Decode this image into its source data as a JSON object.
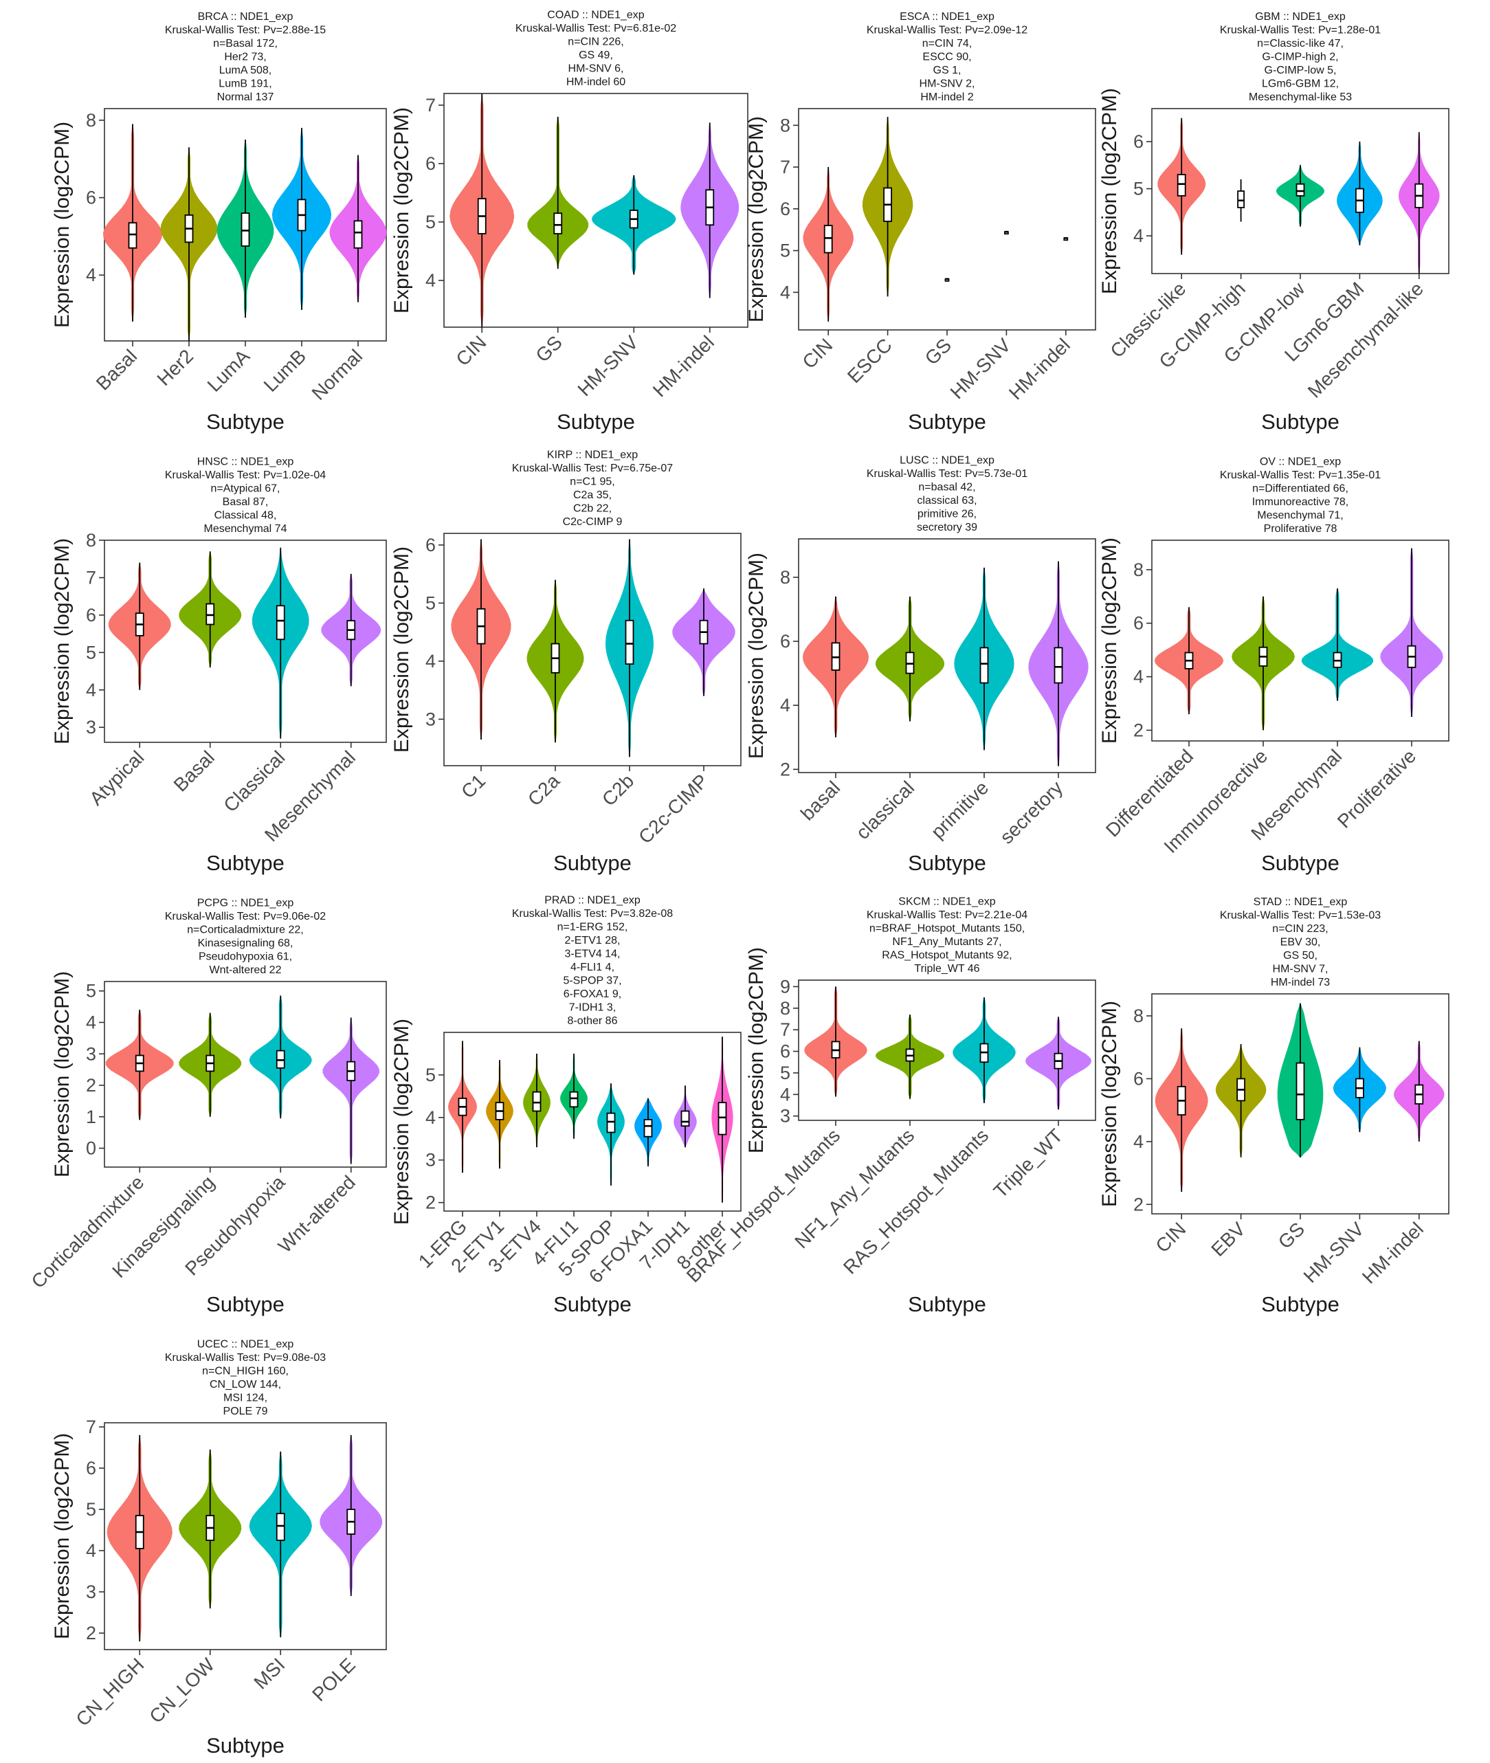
{
  "figure": {
    "xlabel": "Subtype",
    "ylabel": "Expression (log2CPM)"
  },
  "colors": {
    "c2": [
      "#F8766D",
      "#00BFC4"
    ],
    "c4": [
      "#F8766D",
      "#7CAE00",
      "#00BFC4",
      "#C77CFF"
    ],
    "c5": [
      "#F8766D",
      "#A3A500",
      "#00BF7D",
      "#00B0F6",
      "#E76BF3"
    ],
    "c8": [
      "#F8766D",
      "#CD9600",
      "#7CAE00",
      "#00BE67",
      "#00BFC4",
      "#00A9FF",
      "#C77CFF",
      "#FF61CC"
    ]
  },
  "chart_data": [
    {
      "type": "violin",
      "title": "BRCA :: NDE1_exp",
      "test": "Kruskal-Wallis Test: Pv=2.88e-15",
      "n_lines": [
        "n=Basal 172,",
        "Her2 73,",
        "LumA 508,",
        "LumB 191,",
        "Normal 137"
      ],
      "categories": [
        "Basal",
        "Her2",
        "LumA",
        "LumB",
        "Normal"
      ],
      "ylim": [
        2.3,
        8.3
      ],
      "yticks": [
        4,
        6,
        8
      ],
      "xlabel": "Subtype",
      "ylabel": "Expression (log2CPM)",
      "stats": [
        {
          "min": 2.8,
          "q1": 4.7,
          "median": 5.05,
          "q3": 5.35,
          "max": 7.9,
          "width": 0.52
        },
        {
          "min": 2.3,
          "q1": 4.85,
          "median": 5.2,
          "q3": 5.55,
          "max": 7.3,
          "width": 0.5
        },
        {
          "min": 2.9,
          "q1": 4.75,
          "median": 5.15,
          "q3": 5.6,
          "max": 7.5,
          "width": 0.5
        },
        {
          "min": 3.1,
          "q1": 5.15,
          "median": 5.55,
          "q3": 5.95,
          "max": 7.8,
          "width": 0.52
        },
        {
          "min": 3.3,
          "q1": 4.7,
          "median": 5.1,
          "q3": 5.4,
          "max": 7.1,
          "width": 0.5
        }
      ]
    },
    {
      "type": "violin",
      "title": "COAD :: NDE1_exp",
      "test": "Kruskal-Wallis Test: Pv=6.81e-02",
      "n_lines": [
        "n=CIN 226,",
        "GS 49,",
        "HM-SNV 6,",
        "HM-indel 60"
      ],
      "categories": [
        "CIN",
        "GS",
        "HM-SNV",
        "HM-indel"
      ],
      "ylim": [
        3.2,
        7.2
      ],
      "yticks": [
        4,
        5,
        6,
        7
      ],
      "xlabel": "Subtype",
      "ylabel": "Expression (log2CPM)",
      "stats": [
        {
          "min": 3.2,
          "q1": 4.8,
          "median": 5.1,
          "q3": 5.4,
          "max": 7.2,
          "width": 0.42
        },
        {
          "min": 4.2,
          "q1": 4.8,
          "median": 4.95,
          "q3": 5.15,
          "max": 6.8,
          "width": 0.4
        },
        {
          "min": 4.1,
          "q1": 4.9,
          "median": 5.05,
          "q3": 5.2,
          "max": 5.8,
          "width": 0.55
        },
        {
          "min": 3.7,
          "q1": 4.95,
          "median": 5.25,
          "q3": 5.55,
          "max": 6.7,
          "width": 0.38
        }
      ]
    },
    {
      "type": "violin",
      "title": "ESCA :: NDE1_exp",
      "test": "Kruskal-Wallis Test: Pv=2.09e-12",
      "n_lines": [
        "n=CIN 74,",
        "ESCC 90,",
        "GS 1,",
        "HM-SNV 2,",
        "HM-indel 2"
      ],
      "categories": [
        "CIN",
        "ESCC",
        "GS",
        "HM-SNV",
        "HM-indel"
      ],
      "ylim": [
        3.1,
        8.4
      ],
      "yticks": [
        4,
        5,
        6,
        7,
        8
      ],
      "xlabel": "Subtype",
      "ylabel": "Expression (log2CPM)",
      "stats": [
        {
          "min": 3.3,
          "q1": 4.95,
          "median": 5.3,
          "q3": 5.6,
          "max": 7.0,
          "width": 0.42
        },
        {
          "min": 3.9,
          "q1": 5.7,
          "median": 6.1,
          "q3": 6.5,
          "max": 8.2,
          "width": 0.42
        },
        {
          "min": 4.32,
          "q1": 4.32,
          "median": 4.32,
          "q3": 4.32,
          "max": 4.32,
          "width": 0
        },
        {
          "min": 5.45,
          "q1": 5.45,
          "median": 5.45,
          "q3": 5.45,
          "max": 5.45,
          "width": 0
        },
        {
          "min": 5.3,
          "q1": 5.3,
          "median": 5.3,
          "q3": 5.3,
          "max": 5.3,
          "width": 0
        }
      ]
    },
    {
      "type": "violin",
      "title": "GBM :: NDE1_exp",
      "test": "Kruskal-Wallis Test: Pv=1.28e-01",
      "n_lines": [
        "n=Classic-like 47,",
        "G-CIMP-high 2,",
        "G-CIMP-low 5,",
        "LGm6-GBM 12,",
        "Mesenchymal-like 53"
      ],
      "categories": [
        "Classic-like",
        "G-CIMP-high",
        "G-CIMP-low",
        "LGm6-GBM",
        "Mesenchymal-like"
      ],
      "ylim": [
        3.2,
        6.7
      ],
      "yticks": [
        4,
        5,
        6
      ],
      "xlabel": "Subtype",
      "ylabel": "Expression (log2CPM)",
      "stats": [
        {
          "min": 3.6,
          "q1": 4.85,
          "median": 5.1,
          "q3": 5.3,
          "max": 6.5,
          "width": 0.4
        },
        {
          "min": 4.3,
          "q1": 4.6,
          "median": 4.75,
          "q3": 4.95,
          "max": 5.2,
          "width": 0
        },
        {
          "min": 4.2,
          "q1": 4.85,
          "median": 4.95,
          "q3": 5.1,
          "max": 5.5,
          "width": 0.4
        },
        {
          "min": 3.8,
          "q1": 4.5,
          "median": 4.75,
          "q3": 5.0,
          "max": 6.0,
          "width": 0.38
        },
        {
          "min": 3.2,
          "q1": 4.6,
          "median": 4.85,
          "q3": 5.1,
          "max": 6.2,
          "width": 0.34
        }
      ]
    },
    {
      "type": "violin",
      "title": "HNSC :: NDE1_exp",
      "test": "Kruskal-Wallis Test: Pv=1.02e-04",
      "n_lines": [
        "n=Atypical 67,",
        "Basal 87,",
        "Classical 48,",
        "Mesenchymal 74"
      ],
      "categories": [
        "Atypical",
        "Basal",
        "Classical",
        "Mesenchymal"
      ],
      "ylim": [
        2.6,
        8.0
      ],
      "yticks": [
        3,
        4,
        5,
        6,
        7,
        8
      ],
      "xlabel": "Subtype",
      "ylabel": "Expression (log2CPM)",
      "stats": [
        {
          "min": 4.0,
          "q1": 5.45,
          "median": 5.75,
          "q3": 6.05,
          "max": 7.4,
          "width": 0.44
        },
        {
          "min": 4.6,
          "q1": 5.75,
          "median": 6.0,
          "q3": 6.3,
          "max": 7.7,
          "width": 0.44
        },
        {
          "min": 2.7,
          "q1": 5.35,
          "median": 5.85,
          "q3": 6.25,
          "max": 7.8,
          "width": 0.4
        },
        {
          "min": 4.1,
          "q1": 5.35,
          "median": 5.6,
          "q3": 5.85,
          "max": 7.1,
          "width": 0.42
        }
      ]
    },
    {
      "type": "violin",
      "title": "KIRP :: NDE1_exp",
      "test": "Kruskal-Wallis Test: Pv=6.75e-07",
      "n_lines": [
        "n=C1 95,",
        "C2a 35,",
        "C2b 22,",
        "C2c-CIMP 9"
      ],
      "categories": [
        "C1",
        "C2a",
        "C2b",
        "C2c-CIMP"
      ],
      "ylim": [
        2.2,
        6.2
      ],
      "yticks": [
        3,
        4,
        5,
        6
      ],
      "xlabel": "Subtype",
      "ylabel": "Expression (log2CPM)",
      "stats": [
        {
          "min": 2.65,
          "q1": 4.3,
          "median": 4.6,
          "q3": 4.9,
          "max": 6.1,
          "width": 0.4
        },
        {
          "min": 2.6,
          "q1": 3.8,
          "median": 4.05,
          "q3": 4.3,
          "max": 5.4,
          "width": 0.38
        },
        {
          "min": 2.35,
          "q1": 3.95,
          "median": 4.3,
          "q3": 4.7,
          "max": 6.1,
          "width": 0.32
        },
        {
          "min": 3.4,
          "q1": 4.3,
          "median": 4.5,
          "q3": 4.7,
          "max": 5.25,
          "width": 0.42
        }
      ]
    },
    {
      "type": "violin",
      "title": "LUSC :: NDE1_exp",
      "test": "Kruskal-Wallis Test: Pv=5.73e-01",
      "n_lines": [
        "n=basal 42,",
        "classical 63,",
        "primitive 26,",
        "secretory 39"
      ],
      "categories": [
        "basal",
        "classical",
        "primitive",
        "secretory"
      ],
      "ylim": [
        1.9,
        9.2
      ],
      "yticks": [
        2,
        4,
        6,
        8
      ],
      "xlabel": "Subtype",
      "ylabel": "Expression (log2CPM)",
      "stats": [
        {
          "min": 3.0,
          "q1": 5.1,
          "median": 5.5,
          "q3": 5.95,
          "max": 7.4,
          "width": 0.44
        },
        {
          "min": 3.5,
          "q1": 5.0,
          "median": 5.3,
          "q3": 5.65,
          "max": 7.4,
          "width": 0.46
        },
        {
          "min": 2.6,
          "q1": 4.7,
          "median": 5.3,
          "q3": 5.8,
          "max": 8.3,
          "width": 0.4
        },
        {
          "min": 2.1,
          "q1": 4.7,
          "median": 5.2,
          "q3": 5.8,
          "max": 8.5,
          "width": 0.4
        }
      ]
    },
    {
      "type": "violin",
      "title": "OV :: NDE1_exp",
      "test": "Kruskal-Wallis Test: Pv=1.35e-01",
      "n_lines": [
        "n=Differentiated 66,",
        "Immunoreactive 78,",
        "Mesenchymal 71,",
        "Proliferative 78"
      ],
      "categories": [
        "Differentiated",
        "Immunoreactive",
        "Mesenchymal",
        "Proliferative"
      ],
      "ylim": [
        1.6,
        9.1
      ],
      "yticks": [
        2,
        4,
        6,
        8
      ],
      "xlabel": "Subtype",
      "ylabel": "Expression (log2CPM)",
      "stats": [
        {
          "min": 2.6,
          "q1": 4.3,
          "median": 4.6,
          "q3": 4.9,
          "max": 6.6,
          "width": 0.46
        },
        {
          "min": 2.0,
          "q1": 4.4,
          "median": 4.75,
          "q3": 5.1,
          "max": 7.0,
          "width": 0.42
        },
        {
          "min": 3.1,
          "q1": 4.35,
          "median": 4.6,
          "q3": 4.9,
          "max": 7.3,
          "width": 0.48
        },
        {
          "min": 2.5,
          "q1": 4.35,
          "median": 4.75,
          "q3": 5.15,
          "max": 8.8,
          "width": 0.42
        }
      ]
    },
    {
      "type": "violin",
      "title": "PCPG :: NDE1_exp",
      "test": "Kruskal-Wallis Test: Pv=9.06e-02",
      "n_lines": [
        "n=Corticaladmixture 22,",
        "Kinasesignaling 68,",
        "Pseudohypoxia 61,",
        "Wnt-altered 22"
      ],
      "categories": [
        "Corticaladmixture",
        "Kinasesignaling",
        "Pseudohypoxia",
        "Wnt-altered"
      ],
      "ylim": [
        -0.6,
        5.3
      ],
      "yticks": [
        0,
        1,
        2,
        3,
        4,
        5
      ],
      "xlabel": "Subtype",
      "ylabel": "Expression (log2CPM)",
      "stats": [
        {
          "min": 0.9,
          "q1": 2.45,
          "median": 2.7,
          "q3": 2.95,
          "max": 4.4,
          "width": 0.48
        },
        {
          "min": 1.0,
          "q1": 2.45,
          "median": 2.7,
          "q3": 2.95,
          "max": 4.3,
          "width": 0.44
        },
        {
          "min": 0.95,
          "q1": 2.55,
          "median": 2.8,
          "q3": 3.1,
          "max": 4.85,
          "width": 0.44
        },
        {
          "min": -0.5,
          "q1": 2.15,
          "median": 2.45,
          "q3": 2.75,
          "max": 4.15,
          "width": 0.4
        }
      ]
    },
    {
      "type": "violin",
      "title": "PRAD :: NDE1_exp",
      "test": "Kruskal-Wallis Test: Pv=3.82e-08",
      "n_lines": [
        "n=1-ERG 152,",
        "2-ETV1 28,",
        "3-ETV4 14,",
        "4-FLI1 4,",
        "5-SPOP 37,",
        "6-FOXA1 9,",
        "7-IDH1 3,",
        "8-other 86"
      ],
      "categories": [
        "1-ERG",
        "2-ETV1",
        "3-ETV4",
        "4-FLI1",
        "5-SPOP",
        "6-FOXA1",
        "7-IDH1",
        "8-other"
      ],
      "ylim": [
        1.8,
        6.0
      ],
      "yticks": [
        2,
        3,
        4,
        5
      ],
      "xlabel": "Subtype",
      "ylabel": "Expression (log2CPM)",
      "stats": [
        {
          "min": 2.7,
          "q1": 4.05,
          "median": 4.25,
          "q3": 4.45,
          "max": 5.8,
          "width": 0.38
        },
        {
          "min": 2.8,
          "q1": 3.95,
          "median": 4.15,
          "q3": 4.35,
          "max": 5.35,
          "width": 0.36
        },
        {
          "min": 3.3,
          "q1": 4.15,
          "median": 4.35,
          "q3": 4.6,
          "max": 5.5,
          "width": 0.36
        },
        {
          "min": 3.5,
          "q1": 4.25,
          "median": 4.45,
          "q3": 4.6,
          "max": 5.5,
          "width": 0.36
        },
        {
          "min": 2.4,
          "q1": 3.65,
          "median": 3.9,
          "q3": 4.1,
          "max": 4.8,
          "width": 0.36
        },
        {
          "min": 2.85,
          "q1": 3.55,
          "median": 3.8,
          "q3": 3.95,
          "max": 4.45,
          "width": 0.36
        },
        {
          "min": 3.3,
          "q1": 3.8,
          "median": 3.9,
          "q3": 4.15,
          "max": 4.75,
          "width": 0.3
        },
        {
          "min": 2.0,
          "q1": 3.6,
          "median": 4.0,
          "q3": 4.35,
          "max": 5.9,
          "width": 0.28
        }
      ]
    },
    {
      "type": "violin",
      "title": "SKCM :: NDE1_exp",
      "test": "Kruskal-Wallis Test: Pv=2.21e-04",
      "n_lines": [
        "n=BRAF_Hotspot_Mutants 150,",
        "NF1_Any_Mutants 27,",
        "RAS_Hotspot_Mutants 92,",
        "Triple_WT 46"
      ],
      "categories": [
        "BRAF_Hotspot_Mutants",
        "NF1_Any_Mutants",
        "RAS_Hotspot_Mutants",
        "Triple_WT"
      ],
      "ylim": [
        2.8,
        9.3
      ],
      "yticks": [
        3,
        4,
        5,
        6,
        7,
        8,
        9
      ],
      "xlabel": "Subtype",
      "ylabel": "Expression (log2CPM)",
      "stats": [
        {
          "min": 3.9,
          "q1": 5.7,
          "median": 6.05,
          "q3": 6.45,
          "max": 9.0,
          "width": 0.42
        },
        {
          "min": 3.8,
          "q1": 5.55,
          "median": 5.8,
          "q3": 6.1,
          "max": 7.7,
          "width": 0.46
        },
        {
          "min": 3.6,
          "q1": 5.5,
          "median": 5.95,
          "q3": 6.35,
          "max": 8.5,
          "width": 0.42
        },
        {
          "min": 3.3,
          "q1": 5.2,
          "median": 5.55,
          "q3": 5.9,
          "max": 7.6,
          "width": 0.44
        }
      ]
    },
    {
      "type": "violin",
      "title": "STAD :: NDE1_exp",
      "test": "Kruskal-Wallis Test: Pv=1.53e-03",
      "n_lines": [
        "n=CIN 223,",
        "EBV 30,",
        "GS 50,",
        "HM-SNV 7,",
        "HM-indel 73"
      ],
      "categories": [
        "CIN",
        "EBV",
        "GS",
        "HM-SNV",
        "HM-indel"
      ],
      "ylim": [
        1.7,
        8.7
      ],
      "yticks": [
        2,
        4,
        6,
        8
      ],
      "xlabel": "Subtype",
      "ylabel": "Expression (log2CPM)",
      "stats": [
        {
          "min": 2.4,
          "q1": 4.85,
          "median": 5.3,
          "q3": 5.75,
          "max": 7.6,
          "width": 0.44
        },
        {
          "min": 3.5,
          "q1": 5.3,
          "median": 5.65,
          "q3": 6.0,
          "max": 7.1,
          "width": 0.42
        },
        {
          "min": 3.5,
          "q1": 4.7,
          "median": 5.5,
          "q3": 6.5,
          "max": 8.4,
          "width": 0.38
        },
        {
          "min": 4.3,
          "q1": 5.4,
          "median": 5.7,
          "q3": 6.0,
          "max": 7.0,
          "width": 0.44
        },
        {
          "min": 4.0,
          "q1": 5.2,
          "median": 5.5,
          "q3": 5.8,
          "max": 7.2,
          "width": 0.42
        }
      ]
    },
    {
      "type": "violin",
      "title": "UCEC :: NDE1_exp",
      "test": "Kruskal-Wallis Test: Pv=9.08e-03",
      "n_lines": [
        "n=CN_HIGH 160,",
        "CN_LOW 144,",
        "MSI 124,",
        "POLE 79"
      ],
      "categories": [
        "CN_HIGH",
        "CN_LOW",
        "MSI",
        "POLE"
      ],
      "ylim": [
        1.6,
        7.1
      ],
      "yticks": [
        2,
        3,
        4,
        5,
        6,
        7
      ],
      "xlabel": "Subtype",
      "ylabel": "Expression (log2CPM)",
      "stats": [
        {
          "min": 1.8,
          "q1": 4.05,
          "median": 4.45,
          "q3": 4.85,
          "max": 6.8,
          "width": 0.46
        },
        {
          "min": 2.6,
          "q1": 4.25,
          "median": 4.55,
          "q3": 4.85,
          "max": 6.45,
          "width": 0.44
        },
        {
          "min": 1.9,
          "q1": 4.25,
          "median": 4.6,
          "q3": 4.9,
          "max": 6.4,
          "width": 0.44
        },
        {
          "min": 2.9,
          "q1": 4.4,
          "median": 4.7,
          "q3": 5.0,
          "max": 6.8,
          "width": 0.44
        }
      ]
    }
  ]
}
